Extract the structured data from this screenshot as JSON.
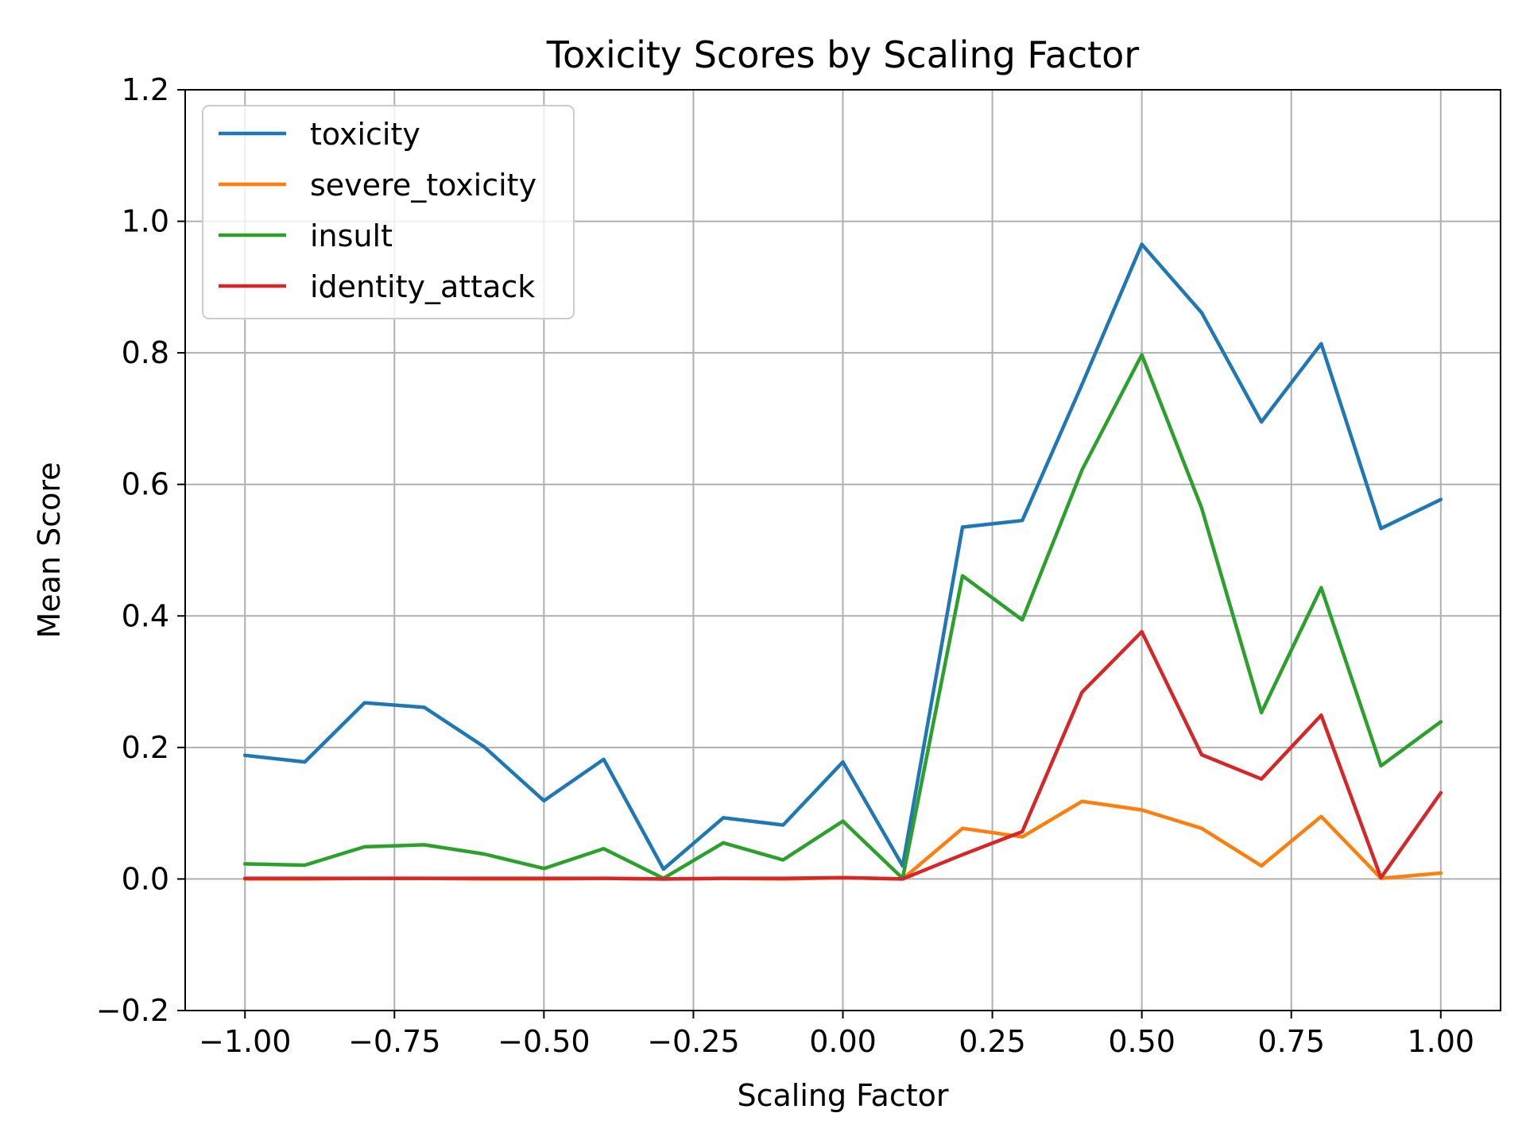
{
  "chart_data": {
    "type": "line",
    "title": "Toxicity Scores by Scaling Factor",
    "xlabel": "Scaling Factor",
    "ylabel": "Mean Score",
    "xlim": [
      -1.1,
      1.1
    ],
    "ylim": [
      -0.2,
      1.2
    ],
    "xticks": [
      -1.0,
      -0.75,
      -0.5,
      -0.25,
      0.0,
      0.25,
      0.5,
      0.75,
      1.0
    ],
    "xtick_labels": [
      "−1.00",
      "−0.75",
      "−0.50",
      "−0.25",
      "0.00",
      "0.25",
      "0.50",
      "0.75",
      "1.00"
    ],
    "yticks": [
      -0.2,
      0.0,
      0.2,
      0.4,
      0.6,
      0.8,
      1.0,
      1.2
    ],
    "ytick_labels": [
      "−0.2",
      "0.0",
      "0.2",
      "0.4",
      "0.6",
      "0.8",
      "1.0",
      "1.2"
    ],
    "grid": true,
    "legend_position": "top-left",
    "x": [
      -1.0,
      -0.9,
      -0.8,
      -0.7,
      -0.6,
      -0.5,
      -0.4,
      -0.3,
      -0.2,
      -0.1,
      0.0,
      0.1,
      0.2,
      0.3,
      0.4,
      0.5,
      0.6,
      0.7,
      0.8,
      0.9,
      1.0
    ],
    "series": [
      {
        "name": "toxicity",
        "color": "#1f77b4",
        "values": [
          0.188,
          0.178,
          0.268,
          0.261,
          0.201,
          0.119,
          0.182,
          0.015,
          0.093,
          0.082,
          0.178,
          0.02,
          0.535,
          0.545,
          0.752,
          0.965,
          0.861,
          0.695,
          0.814,
          0.533,
          0.577
        ]
      },
      {
        "name": "severe_toxicity",
        "color": "#ff7f0e",
        "values": [
          0.0,
          0.0,
          0.001,
          0.001,
          0.0,
          0.0,
          0.001,
          0.0,
          0.001,
          0.0,
          0.002,
          0.0,
          0.077,
          0.064,
          0.118,
          0.105,
          0.077,
          0.02,
          0.095,
          0.001,
          0.009
        ]
      },
      {
        "name": "insult",
        "color": "#2ca02c",
        "values": [
          0.023,
          0.021,
          0.049,
          0.052,
          0.038,
          0.016,
          0.046,
          0.001,
          0.055,
          0.029,
          0.088,
          0.001,
          0.461,
          0.394,
          0.622,
          0.797,
          0.564,
          0.253,
          0.443,
          0.172,
          0.239
        ]
      },
      {
        "name": "identity_attack",
        "color": "#d62728",
        "values": [
          0.001,
          0.001,
          0.001,
          0.001,
          0.001,
          0.001,
          0.001,
          0.0,
          0.001,
          0.001,
          0.002,
          0.0,
          0.037,
          0.072,
          0.284,
          0.376,
          0.189,
          0.152,
          0.249,
          0.002,
          0.131
        ]
      }
    ]
  }
}
